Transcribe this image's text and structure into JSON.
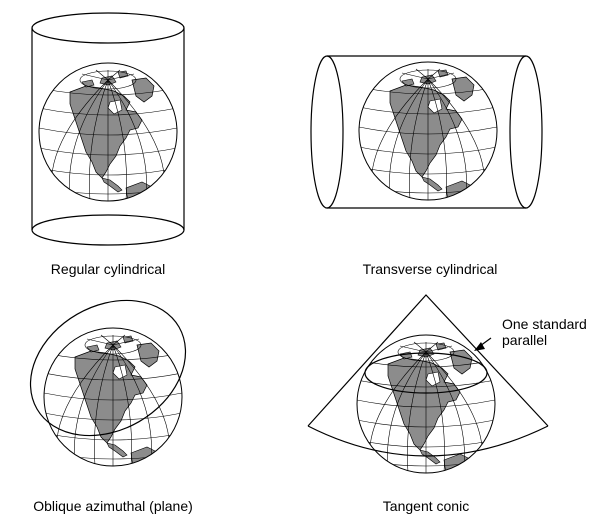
{
  "panels": [
    {
      "id": "regular-cylindrical",
      "label": "Regular cylindrical"
    },
    {
      "id": "transverse-cylindrical",
      "label": "Transverse cylindrical"
    },
    {
      "id": "oblique-azimuthal",
      "label": "Oblique azimuthal (plane)"
    },
    {
      "id": "tangent-conic",
      "label": "Tangent conic",
      "annotation": [
        "One standard",
        "parallel"
      ]
    }
  ],
  "colors": {
    "land": "#8c8c8c",
    "ocean": "#ffffff",
    "ink": "#000000"
  }
}
